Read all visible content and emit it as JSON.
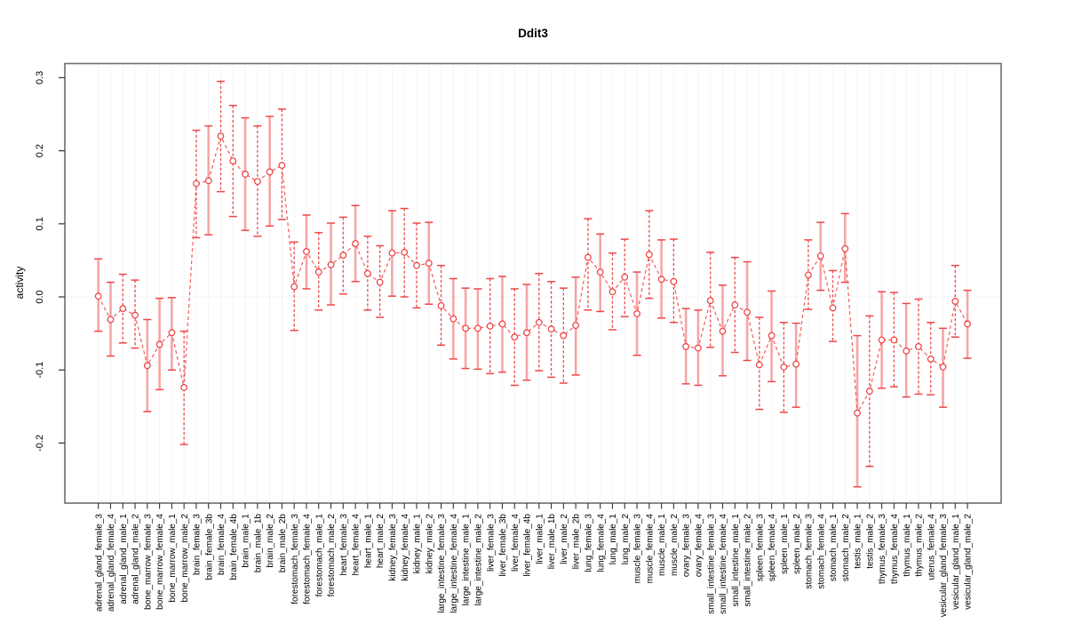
{
  "chart_data": {
    "type": "line",
    "subtype": "points-with-error-bars",
    "title": "Ddit3",
    "xlabel": "",
    "ylabel": "activity",
    "ylim": [
      -0.28,
      0.32
    ],
    "yticks": [
      "0.3",
      "0.2",
      "0.1",
      "0.0",
      "-0.1",
      "-0.2"
    ],
    "ytick_values": [
      0.3,
      0.2,
      0.1,
      0.0,
      -0.1,
      -0.2
    ],
    "grid": "vertical-dotted-per-category, dotted-zero-line",
    "legend": "none",
    "categories": [
      "adrenal_gland_female_3",
      "adrenal_gland_female_4",
      "adrenal_gland_male_1",
      "adrenal_gland_male_2",
      "bone_marrow_female_3",
      "bone_marrow_female_4",
      "bone_marrow_male_1",
      "bone_marrow_male_2",
      "brain_female_3",
      "brain_female_3b",
      "brain_female_4",
      "brain_female_4b",
      "brain_male_1",
      "brain_male_1b",
      "brain_male_2",
      "brain_male_2b",
      "forestomach_female_3",
      "forestomach_female_4",
      "forestomach_male_1",
      "forestomach_male_2",
      "heart_female_3",
      "heart_female_4",
      "heart_male_1",
      "heart_male_2",
      "kidney_female_3",
      "kidney_female_4",
      "kidney_male_1",
      "kidney_male_2",
      "large_intestine_female_3",
      "large_intestine_female_4",
      "large_intestine_male_1",
      "large_intestine_male_2",
      "liver_female_3",
      "liver_female_3b",
      "liver_female_4",
      "liver_female_4b",
      "liver_male_1",
      "liver_male_1b",
      "liver_male_2",
      "liver_male_2b",
      "lung_female_3",
      "lung_female_4",
      "lung_male_1",
      "lung_male_2",
      "muscle_female_3",
      "muscle_female_4",
      "muscle_male_1",
      "muscle_male_2",
      "ovary_female_3",
      "ovary_female_4",
      "small_intestine_female_3",
      "small_intestine_female_4",
      "small_intestine_male_1",
      "small_intestine_male_2",
      "spleen_female_3",
      "spleen_female_4",
      "spleen_male_1",
      "spleen_male_2",
      "stomach_female_3",
      "stomach_female_4",
      "stomach_male_1",
      "stomach_male_2",
      "testis_male_1",
      "testis_male_2",
      "thymus_female_3",
      "thymus_female_4",
      "thymus_male_1",
      "thymus_male_2",
      "uterus_female_4",
      "vesicular_gland_female_3",
      "vesicular_gland_male_1",
      "vesicular_gland_male_2"
    ],
    "values": [
      0.001,
      -0.031,
      -0.016,
      -0.025,
      -0.094,
      -0.065,
      -0.049,
      -0.124,
      0.155,
      0.159,
      0.22,
      0.186,
      0.168,
      0.158,
      0.171,
      0.18,
      0.014,
      0.062,
      0.034,
      0.044,
      0.057,
      0.073,
      0.032,
      0.02,
      0.06,
      0.061,
      0.043,
      0.046,
      -0.012,
      -0.03,
      -0.043,
      -0.043,
      -0.04,
      -0.037,
      -0.055,
      -0.049,
      -0.035,
      -0.044,
      -0.053,
      -0.039,
      0.054,
      0.034,
      0.007,
      0.027,
      -0.023,
      0.058,
      0.024,
      0.021,
      -0.068,
      -0.07,
      -0.005,
      -0.047,
      -0.011,
      -0.021,
      -0.093,
      -0.053,
      -0.096,
      -0.092,
      0.03,
      0.056,
      -0.015,
      0.066,
      -0.159,
      -0.129,
      -0.059,
      -0.059,
      -0.074,
      -0.068,
      -0.085,
      -0.096,
      -0.006,
      -0.037
    ],
    "error_high": [
      0.052,
      0.02,
      0.031,
      0.023,
      -0.031,
      -0.002,
      -0.001,
      -0.047,
      0.228,
      0.234,
      0.295,
      0.262,
      0.245,
      0.234,
      0.247,
      0.257,
      0.075,
      0.112,
      0.088,
      0.101,
      0.109,
      0.125,
      0.083,
      0.07,
      0.118,
      0.121,
      0.101,
      0.102,
      0.043,
      0.025,
      0.012,
      0.011,
      0.025,
      0.028,
      0.011,
      0.017,
      0.032,
      0.021,
      0.012,
      0.027,
      0.107,
      0.086,
      0.06,
      0.079,
      0.034,
      0.118,
      0.078,
      0.079,
      -0.016,
      -0.018,
      0.061,
      0.016,
      0.054,
      0.048,
      -0.028,
      0.008,
      -0.035,
      -0.036,
      0.078,
      0.102,
      0.036,
      0.114,
      -0.053,
      -0.026,
      0.007,
      0.006,
      -0.009,
      -0.003,
      -0.035,
      -0.043,
      0.043,
      0.009
    ],
    "error_low": [
      -0.047,
      -0.081,
      -0.063,
      -0.07,
      -0.157,
      -0.127,
      -0.1,
      -0.202,
      0.081,
      0.085,
      0.144,
      0.11,
      0.091,
      0.083,
      0.097,
      0.106,
      -0.046,
      0.011,
      -0.018,
      -0.011,
      0.004,
      0.021,
      -0.018,
      -0.028,
      0.001,
      0.0,
      -0.015,
      -0.01,
      -0.066,
      -0.085,
      -0.098,
      -0.099,
      -0.105,
      -0.103,
      -0.121,
      -0.114,
      -0.101,
      -0.11,
      -0.118,
      -0.107,
      -0.018,
      -0.02,
      -0.045,
      -0.027,
      -0.08,
      -0.002,
      -0.029,
      -0.035,
      -0.119,
      -0.121,
      -0.069,
      -0.108,
      -0.076,
      -0.087,
      -0.154,
      -0.116,
      -0.158,
      -0.151,
      -0.017,
      0.009,
      -0.061,
      0.02,
      -0.26,
      -0.232,
      -0.125,
      -0.123,
      -0.137,
      -0.133,
      -0.134,
      -0.151,
      -0.055,
      -0.084
    ],
    "stem_styles": [
      "L",
      "L",
      "D",
      "D",
      "L",
      "L",
      "L",
      "D",
      "D",
      "L",
      "D",
      "D",
      "L",
      "D",
      "L",
      "D",
      "D",
      "L",
      "D",
      "L",
      "D",
      "L",
      "D",
      "D",
      "L",
      "D",
      "D",
      "L",
      "D",
      "L",
      "L",
      "L",
      "D",
      "L",
      "D",
      "L",
      "D",
      "D",
      "D",
      "L",
      "D",
      "L",
      "D",
      "D",
      "L",
      "D",
      "L",
      "D",
      "L",
      "L",
      "D",
      "L",
      "D",
      "L",
      "D",
      "L",
      "D",
      "L",
      "D",
      "L",
      "D",
      "L",
      "L",
      "D",
      "L",
      "D",
      "L",
      "D",
      "D",
      "L",
      "D",
      "L"
    ],
    "colors": {
      "point": "#ee3c3c",
      "connector": "#f15e5e",
      "stem_light": "#f5a6a6",
      "stem_dark": "#ee4747",
      "cap": "#ee4747",
      "grid": "#d9d9d9",
      "border": "#6e6e6e",
      "tick": "#333333",
      "text": "#000000"
    }
  }
}
